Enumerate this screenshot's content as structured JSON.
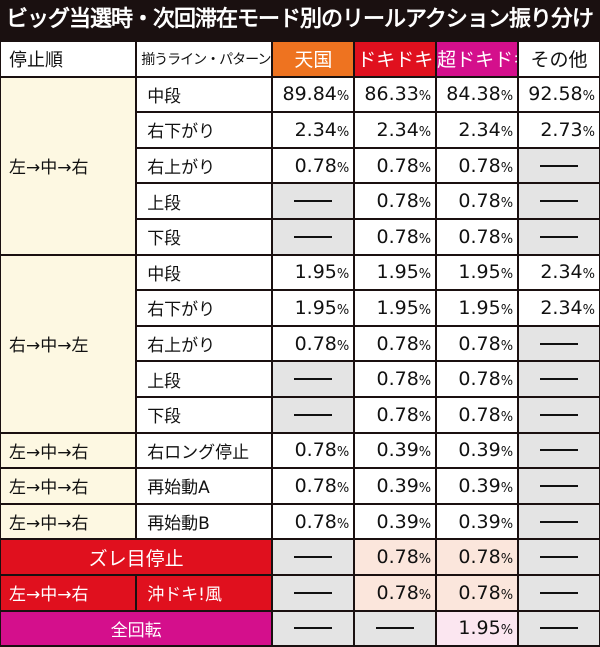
{
  "title": "ビッグ当選時・次回滞在モード別のリールアクション振り分け",
  "headers": {
    "order": "停止順",
    "pattern": "揃うライン・パターン",
    "modes": [
      {
        "label": "天国",
        "color": "#ee7320"
      },
      {
        "label": "ドキドキ",
        "color": "#e0101e"
      },
      {
        "label": "超ドキドキ",
        "color": "#d40f8c"
      },
      {
        "label": "その他",
        "color": "#ffffff"
      }
    ]
  },
  "percent_sign": "%",
  "groups": [
    {
      "order": "左→中→右",
      "rows": [
        {
          "pattern": "中段",
          "values": [
            "89.84",
            "86.33",
            "84.38",
            "92.58"
          ]
        },
        {
          "pattern": "右下がり",
          "values": [
            "2.34",
            "2.34",
            "2.34",
            "2.73"
          ]
        },
        {
          "pattern": "右上がり",
          "values": [
            "0.78",
            "0.78",
            "0.78",
            null
          ]
        },
        {
          "pattern": "上段",
          "values": [
            null,
            "0.78",
            "0.78",
            null
          ]
        },
        {
          "pattern": "下段",
          "values": [
            null,
            "0.78",
            "0.78",
            null
          ]
        }
      ]
    },
    {
      "order": "右→中→左",
      "rows": [
        {
          "pattern": "中段",
          "values": [
            "1.95",
            "1.95",
            "1.95",
            "2.34"
          ]
        },
        {
          "pattern": "右下がり",
          "values": [
            "1.95",
            "1.95",
            "1.95",
            "2.34"
          ]
        },
        {
          "pattern": "右上がり",
          "values": [
            "0.78",
            "0.78",
            "0.78",
            null
          ]
        },
        {
          "pattern": "上段",
          "values": [
            null,
            "0.78",
            "0.78",
            null
          ]
        },
        {
          "pattern": "下段",
          "values": [
            null,
            "0.78",
            "0.78",
            null
          ]
        }
      ]
    },
    {
      "order": "左→中→右",
      "rows": [
        {
          "pattern": "右ロング停止",
          "values": [
            "0.78",
            "0.39",
            "0.39",
            null
          ]
        }
      ]
    },
    {
      "order": "左→中→右",
      "rows": [
        {
          "pattern": "再始動A",
          "values": [
            "0.78",
            "0.39",
            "0.39",
            null
          ]
        }
      ]
    },
    {
      "order": "左→中→右",
      "rows": [
        {
          "pattern": "再始動B",
          "values": [
            "0.78",
            "0.39",
            "0.39",
            null
          ]
        }
      ]
    }
  ],
  "special": [
    {
      "label": "ズレ目停止",
      "style": "red",
      "values": [
        null,
        "0.78",
        "0.78",
        null
      ]
    },
    {
      "order": "左→中→右",
      "pattern": "沖ドキ!風",
      "style": "red",
      "values": [
        null,
        "0.78",
        "0.78",
        null
      ]
    },
    {
      "label": "全回転",
      "style": "pink",
      "values": [
        null,
        null,
        "1.95",
        null
      ]
    }
  ]
}
